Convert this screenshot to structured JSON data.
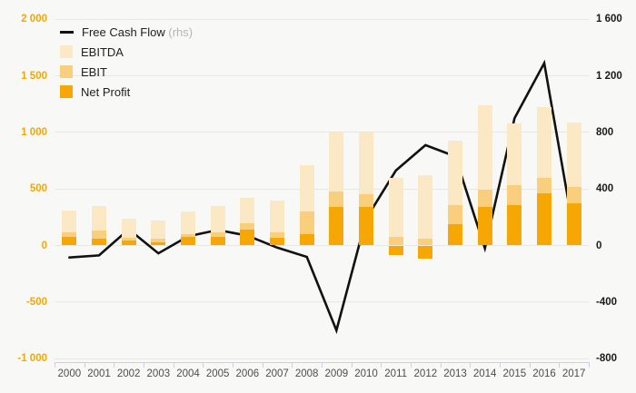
{
  "legend": [
    {
      "label": "Free Cash Flow",
      "suffix": " (rhs)",
      "type": "line",
      "color": "#111111"
    },
    {
      "label": "EBITDA",
      "type": "box",
      "color": "#fbe8c4"
    },
    {
      "label": "EBIT",
      "type": "box",
      "color": "#f9cf7e"
    },
    {
      "label": "Net Profit",
      "type": "box",
      "color": "#f6a703"
    }
  ],
  "axes": {
    "left_ticks": [
      "2 000",
      "1 500",
      "1 000",
      "500",
      "0",
      "-500",
      "-1 000"
    ],
    "left_tick_values": [
      2000,
      1500,
      1000,
      500,
      0,
      -500,
      -1000
    ],
    "right_ticks": [
      "1 600",
      "1 200",
      "800",
      "400",
      "0",
      "-400",
      "-800"
    ],
    "right_tick_values": [
      1600,
      1200,
      800,
      400,
      0,
      -400,
      -800
    ],
    "left_axis_color": "#f2a50c",
    "right_axis_color": "#1a1a1a",
    "x_axis_color": "#c9d2e2",
    "gridline_color": "#e7e7e4"
  },
  "chart_data": {
    "type": "bar+line",
    "title": "",
    "xlabel": "",
    "ylabel_left": "",
    "ylabel_right": "",
    "grid": true,
    "legend_position": "top-left",
    "left_ylim": [
      -1000,
      2000
    ],
    "right_ylim": [
      -800,
      1600
    ],
    "categories": [
      "2000",
      "2001",
      "2002",
      "2003",
      "2004",
      "2005",
      "2006",
      "2007",
      "2008",
      "2009",
      "2010",
      "2011",
      "2012",
      "2013",
      "2014",
      "2015",
      "2016",
      "2017"
    ],
    "series": [
      {
        "name": "EBITDA",
        "type": "bar",
        "axis": "left",
        "color": "#fbe8c4",
        "values": [
          310,
          345,
          240,
          220,
          300,
          345,
          420,
          400,
          710,
          1000,
          1000,
          595,
          625,
          930,
          1240,
          1080,
          1220,
          1090
        ]
      },
      {
        "name": "EBIT",
        "type": "bar",
        "axis": "left",
        "color": "#f9cf7e",
        "values": [
          115,
          135,
          70,
          60,
          100,
          115,
          200,
          120,
          300,
          480,
          450,
          75,
          60,
          360,
          490,
          530,
          600,
          520
        ]
      },
      {
        "name": "Net Profit",
        "type": "bar",
        "axis": "left",
        "color": "#f6a703",
        "values": [
          75,
          60,
          45,
          25,
          75,
          80,
          140,
          70,
          100,
          340,
          340,
          -85,
          -120,
          190,
          340,
          360,
          460,
          370
        ]
      },
      {
        "name": "Free Cash Flow",
        "type": "line",
        "axis": "right",
        "color": "#111111",
        "values": [
          -85,
          -70,
          115,
          -55,
          65,
          110,
          70,
          -15,
          -80,
          -600,
          190,
          530,
          710,
          630,
          -20,
          900,
          1290,
          90
        ]
      }
    ]
  }
}
